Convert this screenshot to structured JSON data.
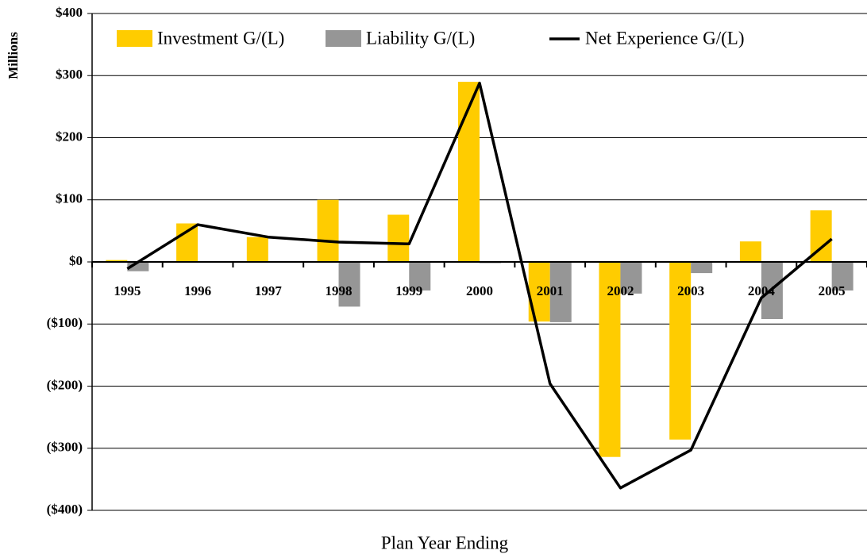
{
  "chart_data": {
    "type": "bar-line",
    "y_label": "Millions",
    "x_label": "Plan Year Ending",
    "categories": [
      "1995",
      "1996",
      "1997",
      "1998",
      "1999",
      "2000",
      "2001",
      "2002",
      "2003",
      "2004",
      "2005"
    ],
    "series": [
      {
        "name": "Investment G/(L)",
        "kind": "bar",
        "color": "#ffcc00",
        "values": [
          3,
          62,
          40,
          100,
          76,
          290,
          -96,
          -314,
          -286,
          33,
          83
        ]
      },
      {
        "name": "Liability G/(L)",
        "kind": "bar",
        "color": "#969696",
        "values": [
          -15,
          0,
          0,
          -72,
          -46,
          -2,
          -97,
          -51,
          -18,
          -92,
          -46
        ]
      },
      {
        "name": "Net Experience G/(L)",
        "kind": "line",
        "color": "#000000",
        "values": [
          -11,
          60,
          40,
          32,
          29,
          288,
          -196,
          -364,
          -303,
          -58,
          37
        ]
      }
    ],
    "ylim": [
      -400,
      400
    ],
    "yticks": [
      {
        "value": -400,
        "label": "($400)"
      },
      {
        "value": -300,
        "label": "($300)"
      },
      {
        "value": -200,
        "label": "($200)"
      },
      {
        "value": -100,
        "label": "($100)"
      },
      {
        "value": 0,
        "label": "$0"
      },
      {
        "value": 100,
        "label": "$100"
      },
      {
        "value": 200,
        "label": "$200"
      },
      {
        "value": 300,
        "label": "$300"
      },
      {
        "value": 400,
        "label": "$400"
      }
    ],
    "grid": true,
    "legend": "top"
  }
}
